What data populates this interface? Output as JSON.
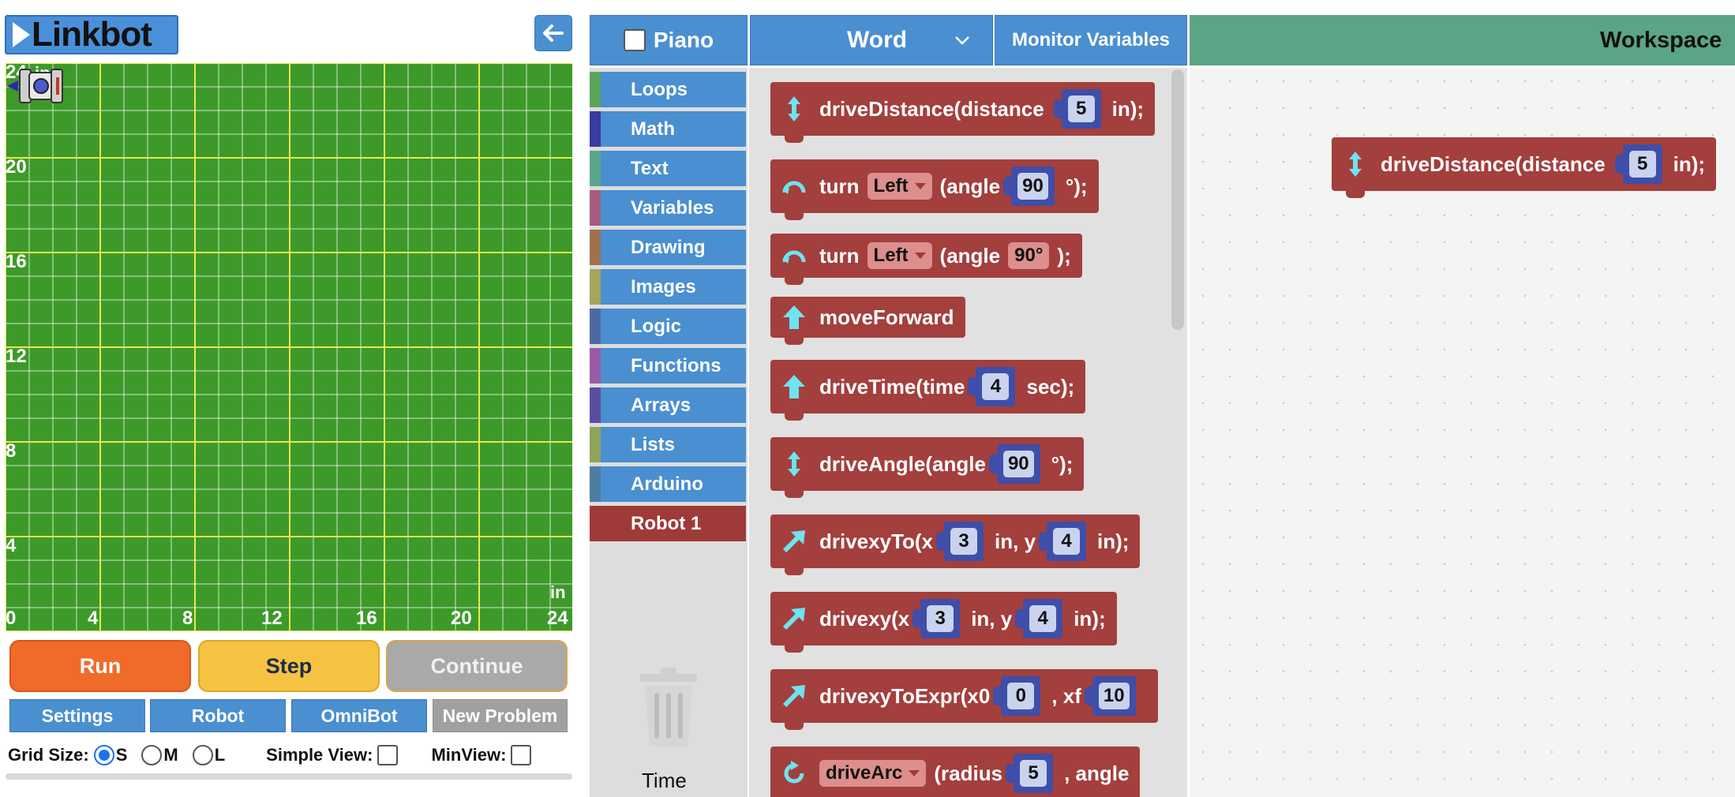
{
  "logo": {
    "text": "Linkbot"
  },
  "grid": {
    "y_labels": [
      "24",
      "20",
      "16",
      "12",
      "8",
      "4"
    ],
    "x_labels": [
      "0",
      "4",
      "8",
      "12",
      "16",
      "20",
      "24"
    ],
    "unit_top": "in",
    "unit_right": "in"
  },
  "controls": {
    "run": "Run",
    "step": "Step",
    "continue": "Continue"
  },
  "tabs": {
    "settings": "Settings",
    "robot": "Robot",
    "omnibot": "OmniBot",
    "new_problem": "New Problem"
  },
  "options": {
    "grid_size_label": "Grid Size:",
    "sizes": [
      "S",
      "M",
      "L"
    ],
    "selected_size": "S",
    "simple_view_label": "Simple View:",
    "minview_label": "MinView:"
  },
  "header": {
    "piano": "Piano",
    "word": "Word",
    "monitor": "Monitor Variables",
    "workspace": "Workspace"
  },
  "categories": [
    {
      "label": "Loops",
      "color": "#5ba55b"
    },
    {
      "label": "Math",
      "color": "#3a3aa0"
    },
    {
      "label": "Text",
      "color": "#5ba58c"
    },
    {
      "label": "Variables",
      "color": "#a55b80"
    },
    {
      "label": "Drawing",
      "color": "#a0714d"
    },
    {
      "label": "Images",
      "color": "#a5a55b"
    },
    {
      "label": "Logic",
      "color": "#4d6aa0"
    },
    {
      "label": "Functions",
      "color": "#995ba5"
    },
    {
      "label": "Arrays",
      "color": "#5b4da0"
    },
    {
      "label": "Lists",
      "color": "#8ca55b"
    },
    {
      "label": "Arduino",
      "color": "#4d7ea0"
    },
    {
      "label": "Robot 1",
      "color": "#9e3a38"
    }
  ],
  "toolbox_footer": {
    "time": "Time"
  },
  "blocks": {
    "drive_distance": {
      "name": "driveDistance(distance",
      "value": "5",
      "unit": "in);"
    },
    "turn1": {
      "name": "turn",
      "dir": "Left",
      "mid": "(angle",
      "value": "90",
      "unit": "°);"
    },
    "turn2": {
      "name": "turn",
      "dir": "Left",
      "mid": "(angle",
      "deg": "90°",
      "unit": ");"
    },
    "move_forward": {
      "name": "moveForward"
    },
    "drive_time": {
      "name": "driveTime(time",
      "value": "4",
      "unit": "sec);"
    },
    "drive_angle": {
      "name": "driveAngle(angle",
      "value": "90",
      "unit": "°);"
    },
    "drivexy_to": {
      "name": "drivexyTo(x",
      "x": "3",
      "mid": "in, y",
      "y": "4",
      "unit": "in);"
    },
    "drivexy": {
      "name": "drivexy(x",
      "x": "3",
      "mid": "in, y",
      "y": "4",
      "unit": "in);"
    },
    "drivexy_expr": {
      "name": "drivexyToExpr(x0",
      "x0": "0",
      "mid": ", xf",
      "xf": "10"
    },
    "drive_arc": {
      "dir": "driveArc",
      "mid": "(radius",
      "value": "5",
      "end": ", angle"
    }
  },
  "workspace_block": {
    "name": "driveDistance(distance",
    "value": "5",
    "unit": "in);"
  }
}
